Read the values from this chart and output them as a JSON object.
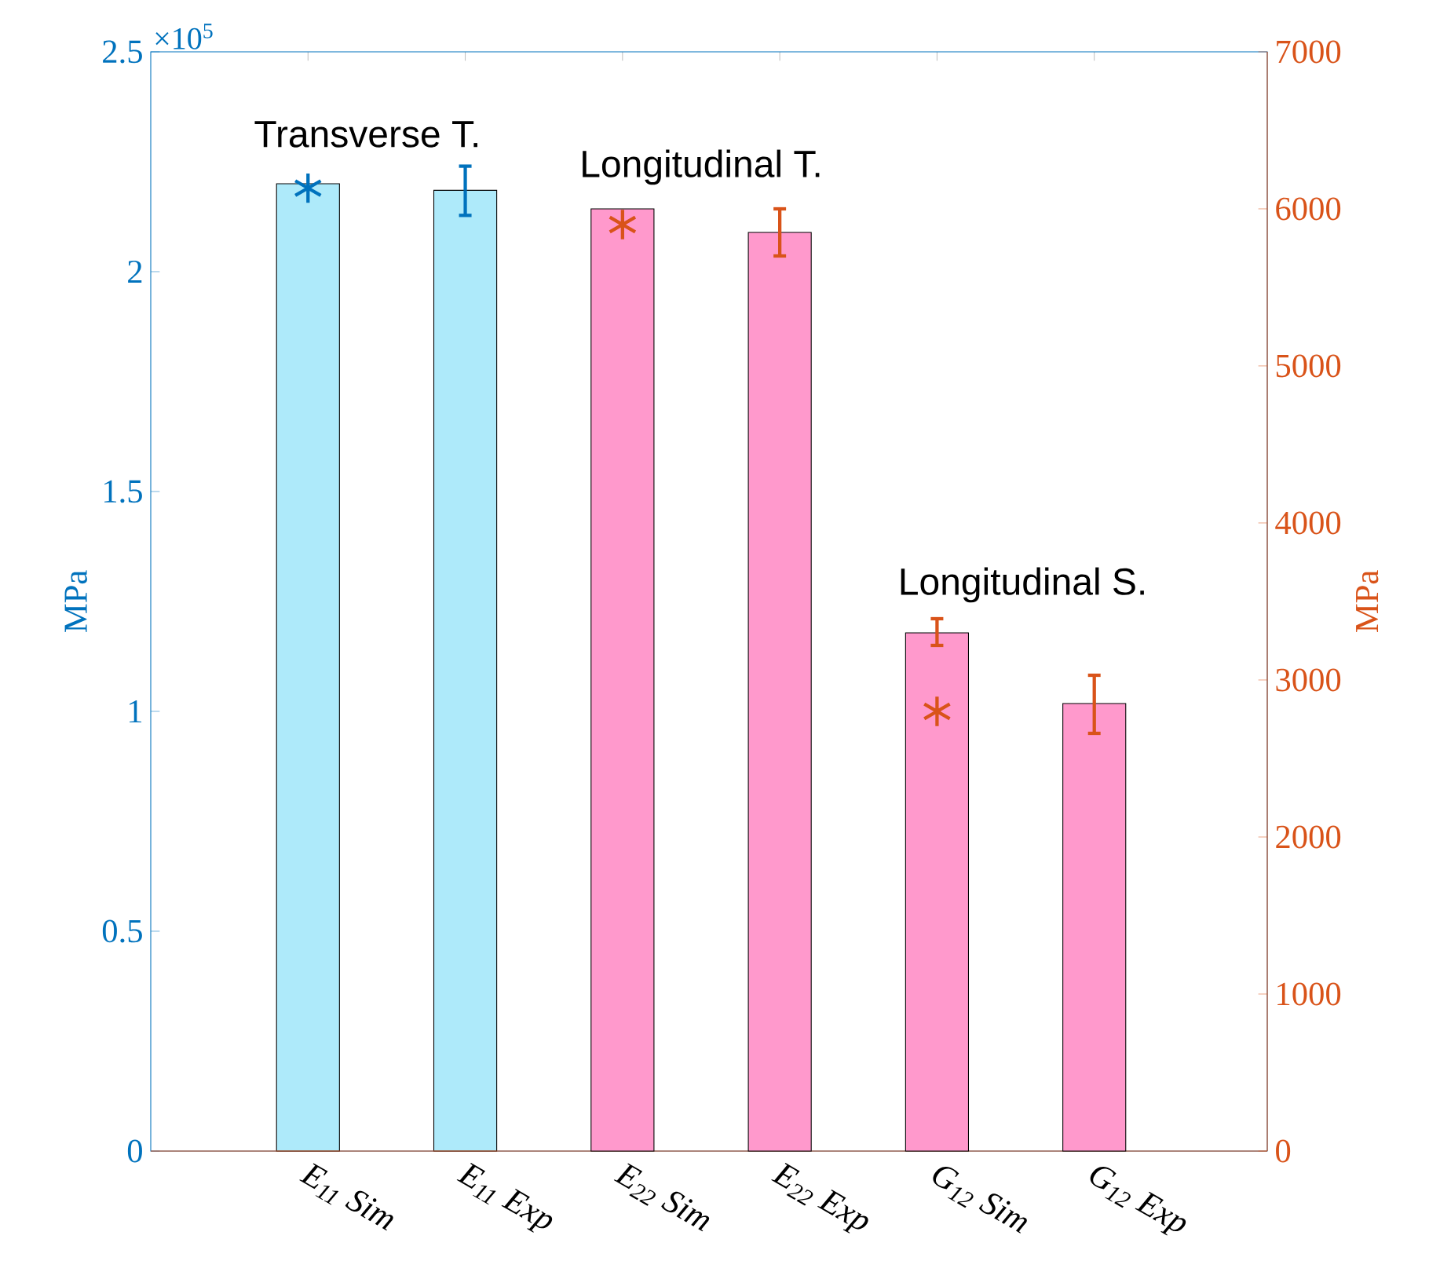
{
  "chart_data": {
    "type": "bar",
    "categories": [
      "E$_{11}$ Sim",
      "E$_{11}$ Exp",
      "E$_{22}$ Sim",
      "E$_{22}$ Exp",
      "G$_{12}$ Sim",
      "G$_{12}$ Exp"
    ],
    "series": [
      {
        "axis": "y",
        "color": "#aeeafa",
        "values": [
          2.2,
          2.185,
          null,
          null,
          null,
          null
        ],
        "errors": [
          null,
          [
            2.128,
            2.24
          ],
          null,
          null,
          null,
          null
        ]
      },
      {
        "axis": "y2",
        "color": "#ff99cc",
        "values": [
          null,
          null,
          6000,
          5850,
          3300,
          2850
        ],
        "errors": [
          null,
          null,
          null,
          [
            5700,
            6000
          ],
          [
            3220,
            3390
          ],
          [
            2660,
            3030
          ]
        ]
      },
      {
        "type": "scatter",
        "axis": "y",
        "marker": "cross",
        "color": "#0072bd",
        "values": [
          2.19,
          null,
          null,
          null,
          null,
          null
        ]
      },
      {
        "type": "scatter",
        "axis": "y2",
        "marker": "cross",
        "color": "#d95319",
        "values": [
          null,
          null,
          5900,
          null,
          2800,
          null
        ]
      }
    ],
    "ylim": [
      0,
      2.5
    ],
    "yticks": [
      0,
      0.5,
      1,
      1.5,
      2,
      2.5
    ],
    "y2lim": [
      0,
      7000
    ],
    "y2ticks": [
      0,
      1000,
      2000,
      3000,
      4000,
      5000,
      6000,
      7000
    ],
    "ylabel": "MPa",
    "y2label": "MPa",
    "annotations": [
      "×10$^{5}$",
      "Transverse T.",
      "Longitudinal T.",
      "Longitudinal S."
    ]
  }
}
